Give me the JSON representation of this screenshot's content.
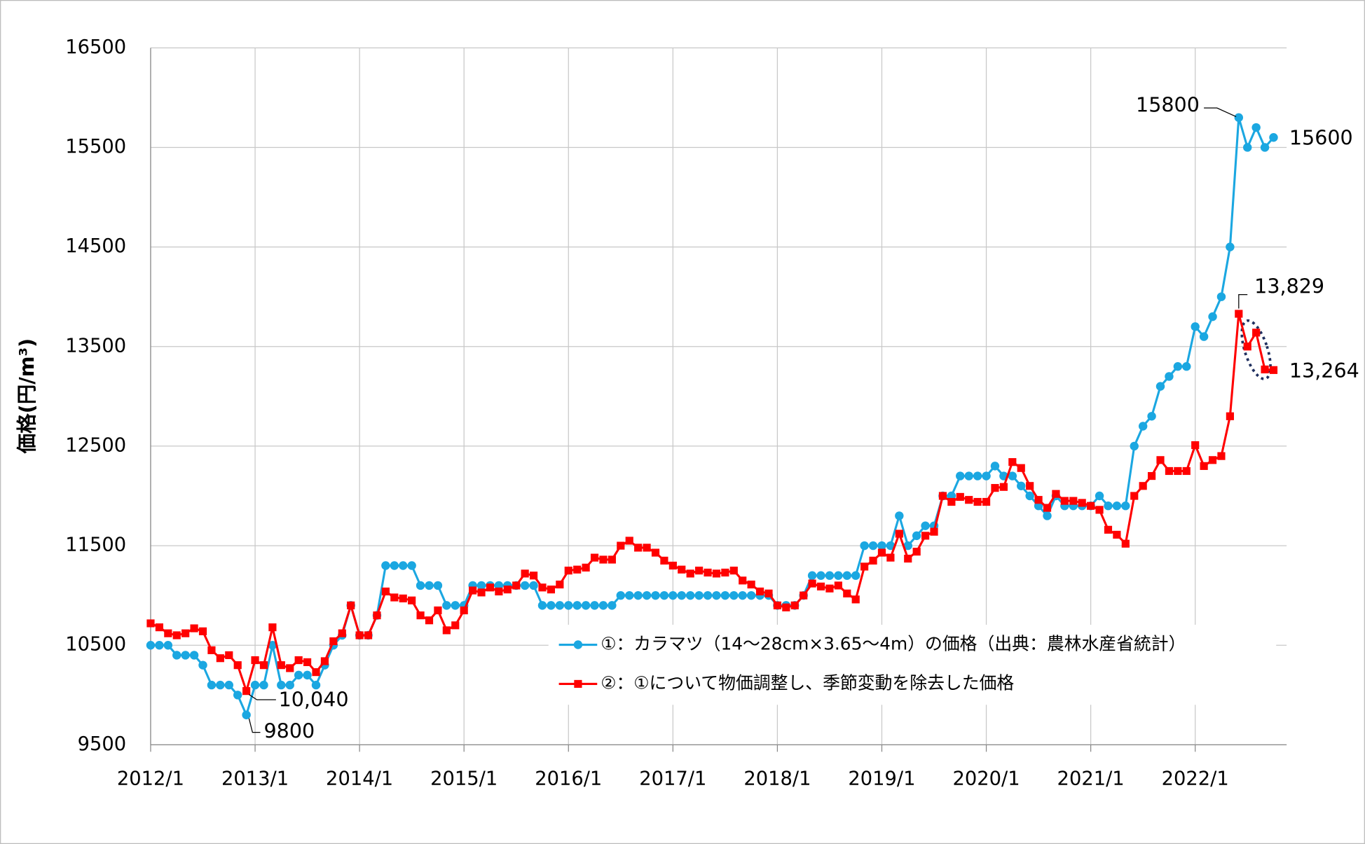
{
  "chart_data": {
    "type": "line",
    "y_label": "価格(円/m³)",
    "categories": [
      "2012/1",
      null,
      null,
      null,
      null,
      null,
      null,
      null,
      null,
      null,
      null,
      null,
      "2013/1",
      null,
      null,
      null,
      null,
      null,
      null,
      null,
      null,
      null,
      null,
      null,
      "2014/1",
      null,
      null,
      null,
      null,
      null,
      null,
      null,
      null,
      null,
      null,
      null,
      "2015/1",
      null,
      null,
      null,
      null,
      null,
      null,
      null,
      null,
      null,
      null,
      null,
      "2016/1",
      null,
      null,
      null,
      null,
      null,
      null,
      null,
      null,
      null,
      null,
      null,
      "2017/1",
      null,
      null,
      null,
      null,
      null,
      null,
      null,
      null,
      null,
      null,
      null,
      "2018/1",
      null,
      null,
      null,
      null,
      null,
      null,
      null,
      null,
      null,
      null,
      null,
      "2019/1",
      null,
      null,
      null,
      null,
      null,
      null,
      null,
      null,
      null,
      null,
      null,
      "2020/1",
      null,
      null,
      null,
      null,
      null,
      null,
      null,
      null,
      null,
      null,
      null,
      "2021/1",
      null,
      null,
      null,
      null,
      null,
      null,
      null,
      null,
      null,
      null,
      null,
      "2022/1",
      null,
      null,
      null,
      null,
      null,
      null,
      null,
      null,
      null
    ],
    "series": [
      {
        "name": "①：カラマツ（14～28cm×3.65～4m）の価格（出典：農林水産省統計）",
        "color": "#1ba7e1",
        "marker": "circle",
        "values": [
          10500,
          10500,
          10500,
          10400,
          10400,
          10400,
          10300,
          10100,
          10100,
          10100,
          10000,
          9800,
          10100,
          10100,
          10500,
          10100,
          10100,
          10200,
          10200,
          10100,
          10300,
          10500,
          10600,
          10900,
          10600,
          10600,
          10800,
          11300,
          11300,
          11300,
          11300,
          11100,
          11100,
          11100,
          10900,
          10900,
          10900,
          11100,
          11100,
          11100,
          11100,
          11100,
          11100,
          11100,
          11100,
          10900,
          10900,
          10900,
          10900,
          10900,
          10900,
          10900,
          10900,
          10900,
          11000,
          11000,
          11000,
          11000,
          11000,
          11000,
          11000,
          11000,
          11000,
          11000,
          11000,
          11000,
          11000,
          11000,
          11000,
          11000,
          11000,
          11000,
          10900,
          10900,
          10900,
          11000,
          11200,
          11200,
          11200,
          11200,
          11200,
          11200,
          11500,
          11500,
          11500,
          11500,
          11800,
          11500,
          11600,
          11700,
          11700,
          12000,
          12000,
          12200,
          12200,
          12200,
          12200,
          12300,
          12200,
          12200,
          12100,
          12000,
          11900,
          11800,
          12000,
          11900,
          11900,
          11900,
          11900,
          12000,
          11900,
          11900,
          11900,
          12500,
          12700,
          12800,
          13100,
          13200,
          13300,
          13300,
          13700,
          13600,
          13800,
          14000,
          14500,
          15800,
          15500,
          15700,
          15500,
          15600
        ],
        "value_labels": [
          null,
          null,
          null,
          null,
          null,
          null,
          null,
          null,
          null,
          null,
          null,
          "9800",
          null,
          null,
          null,
          null,
          null,
          null,
          null,
          null,
          null,
          null,
          null,
          null,
          null,
          null,
          null,
          null,
          null,
          null,
          null,
          null,
          null,
          null,
          null,
          null,
          null,
          null,
          null,
          null,
          null,
          null,
          null,
          null,
          null,
          null,
          null,
          null,
          null,
          null,
          null,
          null,
          null,
          null,
          null,
          null,
          null,
          null,
          null,
          null,
          null,
          null,
          null,
          null,
          null,
          null,
          null,
          null,
          null,
          null,
          null,
          null,
          null,
          null,
          null,
          null,
          null,
          null,
          null,
          null,
          null,
          null,
          null,
          null,
          null,
          null,
          null,
          null,
          null,
          null,
          null,
          null,
          null,
          null,
          null,
          null,
          null,
          null,
          null,
          null,
          null,
          null,
          null,
          null,
          null,
          null,
          null,
          null,
          null,
          null,
          null,
          null,
          null,
          null,
          null,
          null,
          null,
          null,
          null,
          null,
          null,
          null,
          null,
          null,
          null,
          "15800",
          null,
          null,
          null,
          "15600"
        ]
      },
      {
        "name": "②：①について物価調整し、季節変動を除去した価格",
        "color": "#ff0000",
        "marker": "square",
        "values": [
          10720,
          10680,
          10620,
          10600,
          10620,
          10670,
          10640,
          10450,
          10370,
          10400,
          10300,
          10040,
          10350,
          10300,
          10680,
          10300,
          10270,
          10350,
          10330,
          10230,
          10340,
          10540,
          10620,
          10900,
          10600,
          10600,
          10800,
          11040,
          10980,
          10970,
          10950,
          10800,
          10750,
          10850,
          10650,
          10700,
          10850,
          11050,
          11030,
          11080,
          11040,
          11060,
          11100,
          11220,
          11200,
          11080,
          11060,
          11110,
          11250,
          11260,
          11280,
          11380,
          11360,
          11360,
          11500,
          11550,
          11480,
          11480,
          11430,
          11350,
          11300,
          11260,
          11220,
          11250,
          11230,
          11220,
          11230,
          11250,
          11150,
          11110,
          11040,
          11020,
          10900,
          10880,
          10900,
          11000,
          11120,
          11090,
          11070,
          11100,
          11020,
          10960,
          11290,
          11350,
          11430,
          11380,
          11620,
          11370,
          11440,
          11600,
          11640,
          12000,
          11940,
          11990,
          11960,
          11940,
          11940,
          12080,
          12090,
          12340,
          12280,
          12100,
          11960,
          11880,
          12020,
          11950,
          11950,
          11930,
          11900,
          11860,
          11660,
          11610,
          11520,
          12000,
          12100,
          12200,
          12360,
          12250,
          12250,
          12250,
          12510,
          12300,
          12360,
          12400,
          12800,
          13829,
          13500,
          13640,
          13270,
          13264
        ],
        "value_labels": [
          null,
          null,
          null,
          null,
          null,
          null,
          null,
          null,
          null,
          null,
          null,
          "10,040",
          null,
          null,
          null,
          null,
          null,
          null,
          null,
          null,
          null,
          null,
          null,
          null,
          null,
          null,
          null,
          null,
          null,
          null,
          null,
          null,
          null,
          null,
          null,
          null,
          null,
          null,
          null,
          null,
          null,
          null,
          null,
          null,
          null,
          null,
          null,
          null,
          null,
          null,
          null,
          null,
          null,
          null,
          null,
          null,
          null,
          null,
          null,
          null,
          null,
          null,
          null,
          null,
          null,
          null,
          null,
          null,
          null,
          null,
          null,
          null,
          null,
          null,
          null,
          null,
          null,
          null,
          null,
          null,
          null,
          null,
          null,
          null,
          null,
          null,
          null,
          null,
          null,
          null,
          null,
          null,
          null,
          null,
          null,
          null,
          null,
          null,
          null,
          null,
          null,
          null,
          null,
          null,
          null,
          null,
          null,
          null,
          null,
          null,
          null,
          null,
          null,
          null,
          null,
          null,
          null,
          null,
          null,
          null,
          null,
          null,
          null,
          null,
          null,
          "13,829",
          null,
          null,
          null,
          "13,264"
        ]
      }
    ],
    "ylim": [
      9500,
      16500
    ],
    "yticks": [
      9500,
      10500,
      11500,
      12500,
      13500,
      14500,
      15500,
      16500
    ],
    "grid": true,
    "legend": "lower right"
  }
}
